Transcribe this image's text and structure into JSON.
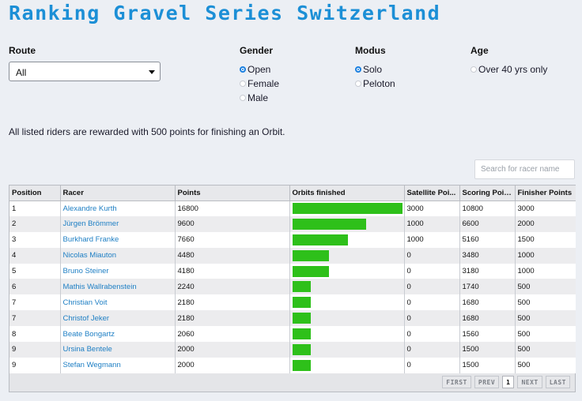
{
  "title": "Ranking Gravel Series Switzerland",
  "filters": {
    "route": {
      "label": "Route",
      "selected": "All"
    },
    "gender": {
      "label": "Gender",
      "options": [
        "Open",
        "Female",
        "Male"
      ],
      "selected": "Open"
    },
    "modus": {
      "label": "Modus",
      "options": [
        "Solo",
        "Peloton"
      ],
      "selected": "Solo"
    },
    "age": {
      "label": "Age",
      "options": [
        "Over 40 yrs only"
      ]
    }
  },
  "note": "All listed riders are rewarded with 500 points for finishing an Orbit.",
  "search": {
    "placeholder": "Search for racer name"
  },
  "colors": {
    "bar": "#2ec01a",
    "accent": "#1c8fd6",
    "link": "#1e7fc4"
  },
  "table": {
    "headers": [
      "Position",
      "Racer",
      "Points",
      "Orbits finished",
      "Satellite Poi...",
      "Scoring Points",
      "Finisher Points"
    ],
    "orbits_max": 6,
    "rows": [
      {
        "position": "1",
        "racer": "Alexandre Kurth",
        "points": "16800",
        "orbits": 6,
        "satellite": "3000",
        "scoring": "10800",
        "finisher": "3000"
      },
      {
        "position": "2",
        "racer": "Jürgen Brömmer",
        "points": "9600",
        "orbits": 4,
        "satellite": "1000",
        "scoring": "6600",
        "finisher": "2000"
      },
      {
        "position": "3",
        "racer": "Burkhard Franke",
        "points": "7660",
        "orbits": 3,
        "satellite": "1000",
        "scoring": "5160",
        "finisher": "1500"
      },
      {
        "position": "4",
        "racer": "Nicolas Miauton",
        "points": "4480",
        "orbits": 2,
        "satellite": "0",
        "scoring": "3480",
        "finisher": "1000"
      },
      {
        "position": "5",
        "racer": "Bruno Steiner",
        "points": "4180",
        "orbits": 2,
        "satellite": "0",
        "scoring": "3180",
        "finisher": "1000"
      },
      {
        "position": "6",
        "racer": "Mathis Wallrabenstein",
        "points": "2240",
        "orbits": 1,
        "satellite": "0",
        "scoring": "1740",
        "finisher": "500"
      },
      {
        "position": "7",
        "racer": "Christian Voit",
        "points": "2180",
        "orbits": 1,
        "satellite": "0",
        "scoring": "1680",
        "finisher": "500"
      },
      {
        "position": "7",
        "racer": "Christof Jeker",
        "points": "2180",
        "orbits": 1,
        "satellite": "0",
        "scoring": "1680",
        "finisher": "500"
      },
      {
        "position": "8",
        "racer": "Beate Bongartz",
        "points": "2060",
        "orbits": 1,
        "satellite": "0",
        "scoring": "1560",
        "finisher": "500"
      },
      {
        "position": "9",
        "racer": "Ursina Bentele",
        "points": "2000",
        "orbits": 1,
        "satellite": "0",
        "scoring": "1500",
        "finisher": "500"
      },
      {
        "position": "9",
        "racer": "Stefan Wegmann",
        "points": "2000",
        "orbits": 1,
        "satellite": "0",
        "scoring": "1500",
        "finisher": "500"
      }
    ]
  },
  "pager": {
    "first": "FIRST",
    "prev": "PREV",
    "current": "1",
    "next": "NEXT",
    "last": "LAST"
  }
}
